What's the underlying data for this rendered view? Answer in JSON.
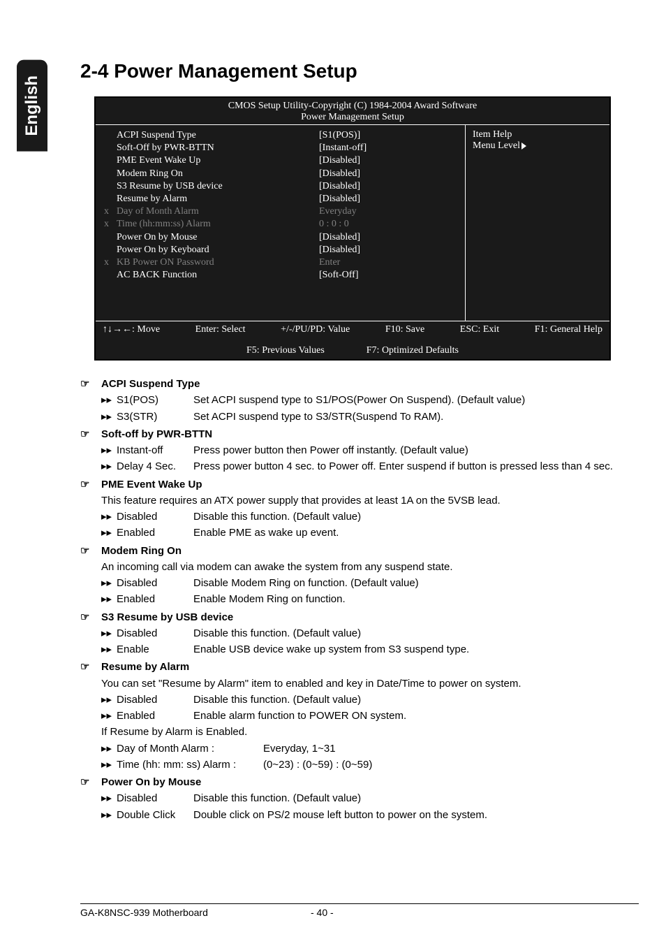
{
  "page": {
    "side_tab": "English",
    "title": "2-4    Power Management Setup"
  },
  "bios": {
    "header_line1": "CMOS Setup Utility-Copyright (C) 1984-2004 Award Software",
    "header_line2": "Power Management Setup",
    "rows": [
      {
        "prefix": "",
        "label": "ACPI Suspend Type",
        "value": "[S1(POS)]",
        "dim": false
      },
      {
        "prefix": "",
        "label": "Soft-Off by PWR-BTTN",
        "value": "[Instant-off]",
        "dim": false
      },
      {
        "prefix": "",
        "label": "PME Event Wake Up",
        "value": "[Disabled]",
        "dim": false
      },
      {
        "prefix": "",
        "label": "Modem Ring On",
        "value": "[Disabled]",
        "dim": false
      },
      {
        "prefix": "",
        "label": "S3 Resume by USB device",
        "value": "[Disabled]",
        "dim": false
      },
      {
        "prefix": "",
        "label": "Resume by Alarm",
        "value": "[Disabled]",
        "dim": false
      },
      {
        "prefix": "x",
        "label": "Day of Month Alarm",
        "value": "Everyday",
        "dim": true
      },
      {
        "prefix": "x",
        "label": "Time (hh:mm:ss) Alarm",
        "value": "0 : 0 : 0",
        "dim": true
      },
      {
        "prefix": "",
        "label": "Power On by Mouse",
        "value": "[Disabled]",
        "dim": false
      },
      {
        "prefix": "",
        "label": "Power On by Keyboard",
        "value": "[Disabled]",
        "dim": false
      },
      {
        "prefix": "x",
        "label": "KB Power ON Password",
        "value": "Enter",
        "dim": true
      },
      {
        "prefix": "",
        "label": "AC BACK Function",
        "value": "[Soft-Off]",
        "dim": false
      }
    ],
    "right": {
      "item_help": "Item Help",
      "menu_level": "Menu Level"
    },
    "footer": {
      "move": "↑↓→←: Move",
      "select": "Enter: Select",
      "value": "+/-/PU/PD: Value",
      "save": "F10: Save",
      "exit": "ESC: Exit",
      "help": "F1: General Help",
      "prev": "F5: Previous Values",
      "defaults": "F7: Optimized Defaults"
    }
  },
  "sections": [
    {
      "title": "ACPI Suspend Type",
      "lines": [
        {
          "type": "opt",
          "opt": "S1(POS)",
          "desc": "Set ACPI suspend type to S1/POS(Power On Suspend). (Default value)"
        },
        {
          "type": "opt",
          "opt": "S3(STR)",
          "desc": "Set ACPI suspend type to S3/STR(Suspend To RAM)."
        }
      ]
    },
    {
      "title": "Soft-off by PWR-BTTN",
      "lines": [
        {
          "type": "opt",
          "opt": "Instant-off",
          "desc": "Press power button then Power off instantly. (Default value)"
        },
        {
          "type": "opt",
          "opt": "Delay 4 Sec.",
          "desc": "Press power button 4 sec. to Power off. Enter suspend if button is pressed less than 4 sec."
        }
      ]
    },
    {
      "title": "PME Event Wake Up",
      "lines": [
        {
          "type": "note",
          "desc": "This feature requires an ATX power supply that provides at least 1A on the 5VSB lead."
        },
        {
          "type": "opt",
          "opt": "Disabled",
          "desc": "Disable this function. (Default value)"
        },
        {
          "type": "opt",
          "opt": "Enabled",
          "desc": "Enable PME as wake up event."
        }
      ]
    },
    {
      "title": "Modem Ring On",
      "lines": [
        {
          "type": "note",
          "desc": "An incoming call via modem can awake the system from any suspend state."
        },
        {
          "type": "opt",
          "opt": "Disabled",
          "desc": "Disable Modem Ring on function. (Default value)"
        },
        {
          "type": "opt",
          "opt": "Enabled",
          "desc": "Enable Modem Ring on function."
        }
      ]
    },
    {
      "title": "S3 Resume by USB device",
      "lines": [
        {
          "type": "opt",
          "opt": "Disabled",
          "desc": "Disable this function. (Default value)"
        },
        {
          "type": "opt",
          "opt": "Enable",
          "desc": "Enable USB device wake up system from S3 suspend type."
        }
      ]
    },
    {
      "title": "Resume by Alarm",
      "lines": [
        {
          "type": "note",
          "desc": "You can set \"Resume by Alarm\" item to enabled and key in Date/Time to power on system."
        },
        {
          "type": "opt",
          "opt": "Disabled",
          "desc": "Disable this function. (Default value)"
        },
        {
          "type": "opt",
          "opt": "Enabled",
          "desc": "Enable alarm function to POWER ON system."
        },
        {
          "type": "note",
          "desc": "If Resume by Alarm is Enabled."
        },
        {
          "type": "opt-wide",
          "opt": "Day of Month Alarm :",
          "desc": "Everyday, 1~31"
        },
        {
          "type": "opt-wide",
          "opt": "Time (hh: mm: ss) Alarm :",
          "desc": "(0~23) : (0~59) : (0~59)"
        }
      ]
    },
    {
      "title": "Power On by Mouse",
      "lines": [
        {
          "type": "opt",
          "opt": "Disabled",
          "desc": "Disable this function. (Default value)"
        },
        {
          "type": "opt",
          "opt": "Double Click",
          "desc": "Double click on PS/2 mouse left button to power on the system."
        }
      ]
    }
  ],
  "footer": {
    "board": "GA-K8NSC-939 Motherboard",
    "page_num": "- 40 -"
  },
  "glyphs": {
    "hand": "☞",
    "dbl": "▸▸"
  }
}
